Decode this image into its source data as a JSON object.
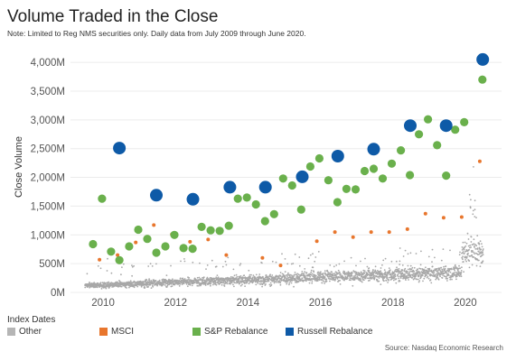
{
  "header": {
    "title": "Volume Traded in the Close",
    "note": "Note: Limited to Reg NMS securities only. Daily data from July 2009 through June 2020."
  },
  "legend": {
    "title": "Index Dates",
    "items": [
      {
        "label": "Other",
        "color": "#b5b5b5"
      },
      {
        "label": "MSCI",
        "color": "#e8762d"
      },
      {
        "label": "S&P Rebalance",
        "color": "#6ab04c"
      },
      {
        "label": "Russell Rebalance",
        "color": "#0e5aa7"
      }
    ]
  },
  "source": "Source: Nasdaq Economic Research",
  "chart_data": {
    "type": "scatter",
    "ylabel": "Close Volume",
    "xlabel": "",
    "xlim": [
      2009.1,
      2021.0
    ],
    "ylim": [
      0,
      4300
    ],
    "x_ticks": [
      2010,
      2012,
      2014,
      2016,
      2018,
      2020
    ],
    "y_ticks": [
      0,
      500,
      1000,
      1500,
      2000,
      2500,
      3000,
      3500,
      4000
    ],
    "y_tick_labels": [
      "0M",
      "500M",
      "1,000M",
      "1,500M",
      "2,000M",
      "2,500M",
      "3,000M",
      "3,500M",
      "4,000M"
    ],
    "grid": "horizontal",
    "legend_placement": "bottom",
    "other_range": {
      "x": [
        2009.5,
        2020.5
      ],
      "y_base_start": 120,
      "y_base_end": 380
    },
    "series": [
      {
        "name": "Russell Rebalance",
        "color": "#0e5aa7",
        "points": [
          [
            2010.45,
            2510
          ],
          [
            2011.47,
            1690
          ],
          [
            2012.48,
            1620
          ],
          [
            2013.5,
            1830
          ],
          [
            2014.48,
            1830
          ],
          [
            2015.5,
            2010
          ],
          [
            2016.48,
            2370
          ],
          [
            2017.47,
            2490
          ],
          [
            2018.48,
            2900
          ],
          [
            2019.47,
            2900
          ],
          [
            2020.48,
            4050
          ]
        ]
      },
      {
        "name": "S&P Rebalance",
        "color": "#6ab04c",
        "points": [
          [
            2009.72,
            840
          ],
          [
            2009.97,
            1630
          ],
          [
            2010.22,
            710
          ],
          [
            2010.45,
            560
          ],
          [
            2010.72,
            800
          ],
          [
            2010.97,
            1090
          ],
          [
            2011.22,
            930
          ],
          [
            2011.47,
            690
          ],
          [
            2011.72,
            800
          ],
          [
            2011.97,
            1000
          ],
          [
            2012.22,
            770
          ],
          [
            2012.47,
            760
          ],
          [
            2012.72,
            1140
          ],
          [
            2012.97,
            1080
          ],
          [
            2013.22,
            1070
          ],
          [
            2013.47,
            1160
          ],
          [
            2013.72,
            1630
          ],
          [
            2013.97,
            1650
          ],
          [
            2014.22,
            1530
          ],
          [
            2014.47,
            1240
          ],
          [
            2014.72,
            1360
          ],
          [
            2014.97,
            1980
          ],
          [
            2015.22,
            1860
          ],
          [
            2015.47,
            1440
          ],
          [
            2015.72,
            2190
          ],
          [
            2015.97,
            2330
          ],
          [
            2016.22,
            1950
          ],
          [
            2016.47,
            1570
          ],
          [
            2016.72,
            1800
          ],
          [
            2016.97,
            1790
          ],
          [
            2017.22,
            2110
          ],
          [
            2017.47,
            2150
          ],
          [
            2017.72,
            1980
          ],
          [
            2017.97,
            2240
          ],
          [
            2018.22,
            2470
          ],
          [
            2018.47,
            2040
          ],
          [
            2018.72,
            2750
          ],
          [
            2018.97,
            3010
          ],
          [
            2019.22,
            2560
          ],
          [
            2019.47,
            2030
          ],
          [
            2019.72,
            2830
          ],
          [
            2019.97,
            2960
          ],
          [
            2020.47,
            3700
          ]
        ]
      },
      {
        "name": "MSCI",
        "color": "#e8762d",
        "points": [
          [
            2009.9,
            570
          ],
          [
            2010.4,
            650
          ],
          [
            2010.9,
            870
          ],
          [
            2011.4,
            1170
          ],
          [
            2011.9,
            1010
          ],
          [
            2012.4,
            880
          ],
          [
            2012.9,
            920
          ],
          [
            2013.4,
            650
          ],
          [
            2014.4,
            600
          ],
          [
            2014.9,
            470
          ],
          [
            2015.9,
            890
          ],
          [
            2016.4,
            1050
          ],
          [
            2016.9,
            960
          ],
          [
            2017.4,
            1050
          ],
          [
            2017.9,
            1050
          ],
          [
            2018.4,
            1100
          ],
          [
            2018.9,
            1370
          ],
          [
            2019.4,
            1300
          ],
          [
            2019.9,
            1310
          ],
          [
            2020.4,
            2280
          ]
        ]
      }
    ]
  }
}
